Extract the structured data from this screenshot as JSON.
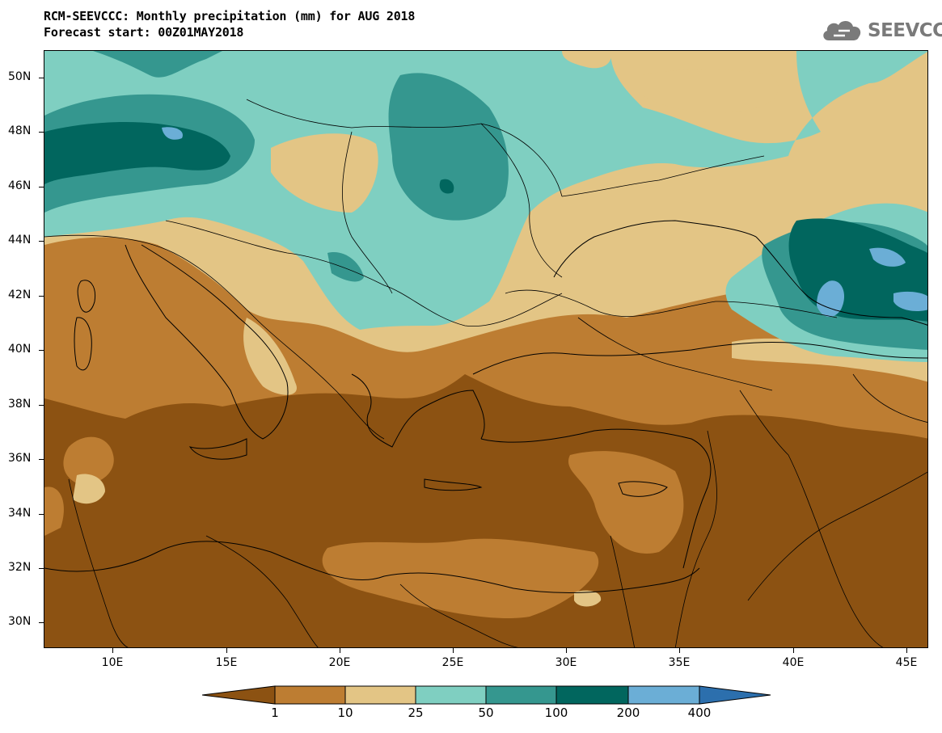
{
  "header": {
    "title_line1": "RCM-SEEVCCC: Monthly precipitation (mm) for AUG 2018",
    "title_line2": "Forecast start: 00Z01MAY2018"
  },
  "logo": {
    "text": "SEEVCCC",
    "icon": "cloud-icon"
  },
  "map": {
    "lat_labels": [
      "50N",
      "48N",
      "46N",
      "44N",
      "42N",
      "40N",
      "38N",
      "36N",
      "34N",
      "32N",
      "30N"
    ],
    "lon_labels": [
      "10E",
      "15E",
      "20E",
      "25E",
      "30E",
      "35E",
      "40E",
      "45E"
    ],
    "lat_range": [
      29,
      51
    ],
    "lon_range": [
      7,
      46
    ]
  },
  "legend": {
    "colors": [
      "#8c5212",
      "#bd7d32",
      "#e3c585",
      "#7fcfc1",
      "#35978f",
      "#01665e",
      "#6baed6",
      "#2c6fad"
    ],
    "thresholds": [
      "1",
      "10",
      "25",
      "50",
      "100",
      "200",
      "400"
    ]
  }
}
